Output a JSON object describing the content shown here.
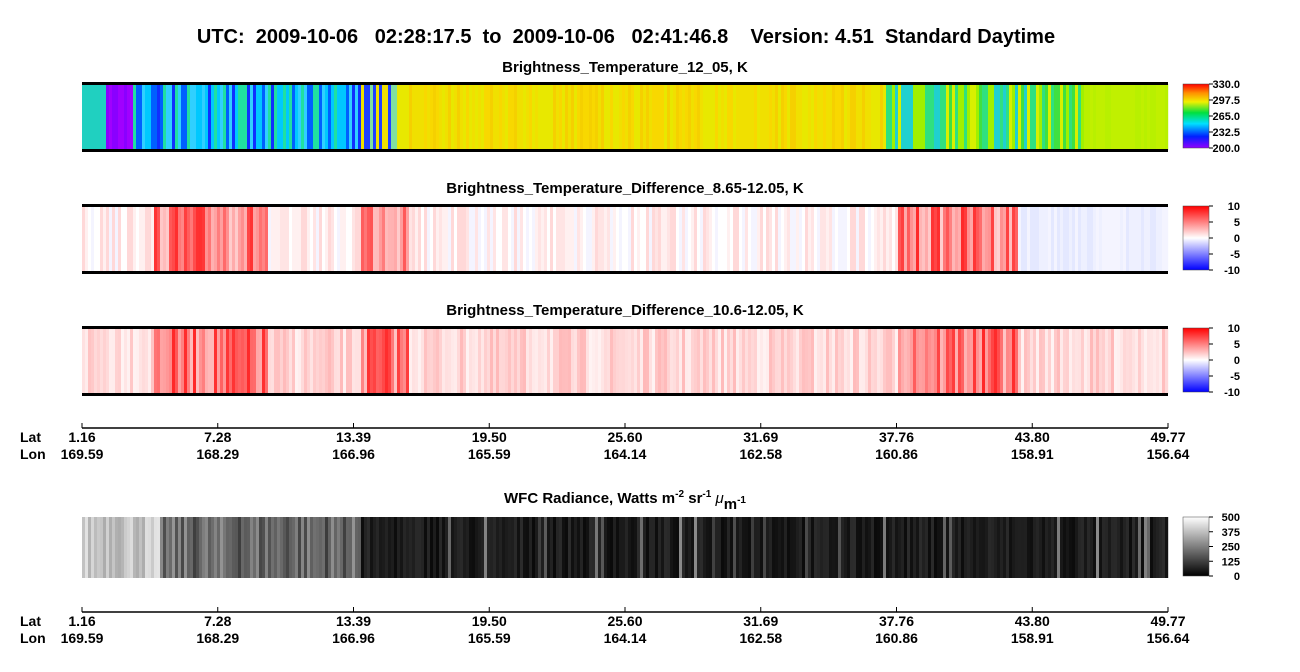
{
  "title": "UTC:  2009-10-06   02:28:17.5  to  2009-10-06   02:41:46.8    Version: 4.51  Standard Daytime",
  "panels": [
    {
      "title": "Brightness_Temperature_12_05, K",
      "colorbar": {
        "lim": [
          200,
          330
        ],
        "ticks": [
          {
            "value": 330,
            "label": "330.0"
          },
          {
            "value": 297.5,
            "label": "297.5"
          },
          {
            "value": 265,
            "label": "265.0"
          },
          {
            "value": 232.5,
            "label": "232.5"
          },
          {
            "value": 200,
            "label": "200.0"
          }
        ]
      }
    },
    {
      "title": "Brightness_Temperature_Difference_8.65-12.05, K",
      "colorbar": {
        "lim": [
          -10,
          10
        ],
        "ticks": [
          10,
          5,
          0,
          -5,
          -10
        ]
      }
    },
    {
      "title": "Brightness_Temperature_Difference_10.6-12.05, K",
      "colorbar": {
        "lim": [
          -10,
          10
        ],
        "ticks": [
          10,
          5,
          0,
          -5,
          -10
        ]
      }
    },
    {
      "title_parts": [
        "WFC Radiance, Watts m",
        "-2",
        " sr",
        "-1",
        " ",
        "μ",
        "m",
        "-1"
      ],
      "colorbar": {
        "lim": [
          0,
          500
        ],
        "ticks": [
          500,
          375,
          250,
          125,
          0
        ]
      }
    }
  ],
  "axes": [
    {
      "lat_label": "Lat",
      "lon_label": "Lon",
      "lat": [
        "1.16",
        "7.28",
        "13.39",
        "19.50",
        "25.60",
        "31.69",
        "37.76",
        "43.80",
        "49.77"
      ],
      "lon": [
        "169.59",
        "168.29",
        "166.96",
        "165.59",
        "164.14",
        "162.58",
        "160.86",
        "158.91",
        "156.64"
      ]
    },
    {
      "lat_label": "Lat",
      "lon_label": "Lon",
      "lat": [
        "1.16",
        "7.28",
        "13.39",
        "19.50",
        "25.60",
        "31.69",
        "37.76",
        "43.80",
        "49.77"
      ],
      "lon": [
        "169.59",
        "168.29",
        "166.96",
        "165.59",
        "164.14",
        "162.58",
        "160.86",
        "158.91",
        "156.64"
      ]
    }
  ]
}
